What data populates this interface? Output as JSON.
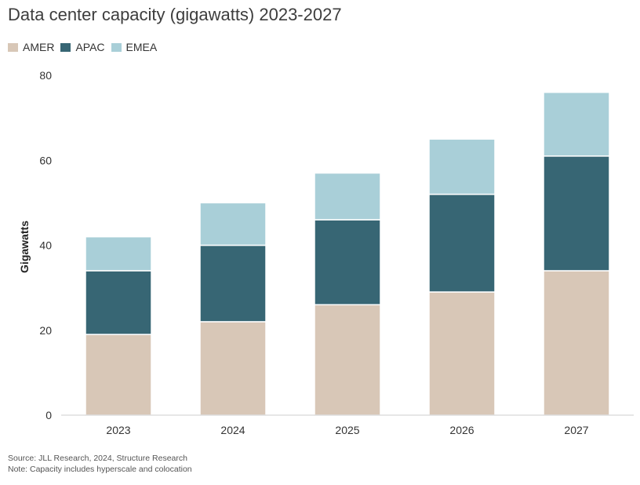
{
  "chart_data": {
    "type": "bar",
    "stacked": true,
    "title": "Data center capacity (gigawatts) 2023-2027",
    "categories": [
      "2023",
      "2024",
      "2025",
      "2026",
      "2027"
    ],
    "series": [
      {
        "name": "AMER",
        "values": [
          19,
          22,
          26,
          29,
          34
        ],
        "color": "#d8c7b7"
      },
      {
        "name": "APAC",
        "values": [
          15,
          18,
          20,
          23,
          27
        ],
        "color": "#376674"
      },
      {
        "name": "EMEA",
        "values": [
          8,
          10,
          11,
          13,
          15
        ],
        "color": "#a9cfd8"
      }
    ],
    "xlabel": "",
    "ylabel": "Gigawatts",
    "ylim": [
      0,
      80
    ],
    "yticks": [
      "0",
      "20",
      "40",
      "60",
      "80"
    ],
    "grid": false,
    "legend": "top-left"
  },
  "footnotes": {
    "source": "Source: JLL Research, 2024, Structure Research",
    "note": "Note: Capacity includes hyperscale and colocation"
  }
}
